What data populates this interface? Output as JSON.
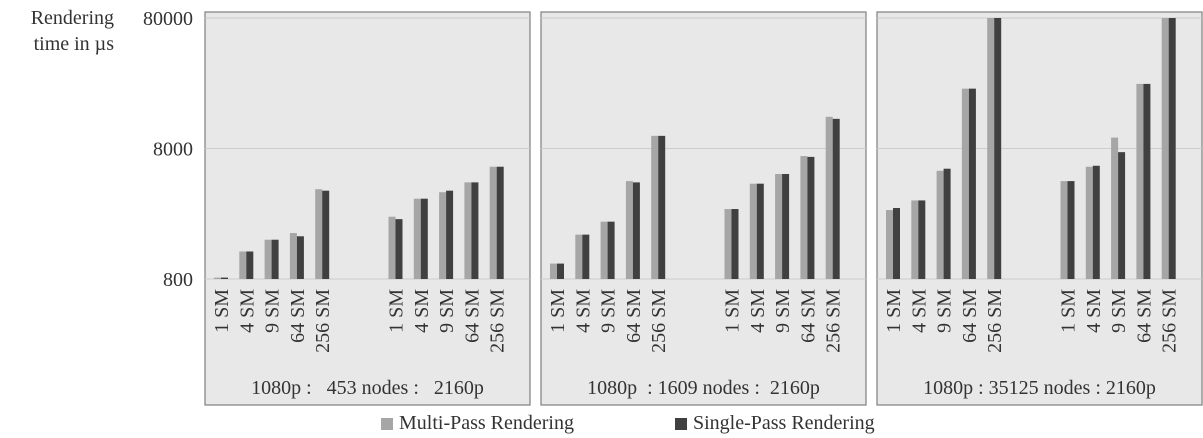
{
  "chart_data": {
    "type": "bar",
    "y_axis": {
      "label_line1": "Rendering",
      "label_line2": "time in µs",
      "scale": "log",
      "ticks": [
        800,
        8000,
        80000
      ],
      "tick_labels": [
        "800",
        "8000",
        "80000"
      ]
    },
    "categories": [
      "1 SM",
      "4 SM",
      "9 SM",
      "64 SM",
      "256 SM",
      "1 SM",
      "4 SM",
      "9 SM",
      "64 SM",
      "256 SM"
    ],
    "panels": [
      {
        "label": "1080p :   453 nodes :   2160p",
        "series": [
          {
            "name": "Multi-Pass Rendering",
            "values": [
              820,
              1300,
              1600,
              1800,
              3900,
              2400,
              3300,
              3700,
              4400,
              5800
            ]
          },
          {
            "name": "Single-Pass Rendering",
            "values": [
              820,
              1300,
              1600,
              1700,
              3800,
              2300,
              3300,
              3800,
              4400,
              5800
            ]
          }
        ]
      },
      {
        "label": "1080p  : 1609 nodes :  2160p",
        "series": [
          {
            "name": "Multi-Pass Rendering",
            "values": [
              1050,
              1750,
              2200,
              4500,
              10000,
              2750,
              4300,
              5100,
              7000,
              14000
            ]
          },
          {
            "name": "Single-Pass Rendering",
            "values": [
              1050,
              1750,
              2200,
              4400,
              10000,
              2750,
              4300,
              5100,
              6900,
              13500
            ]
          }
        ]
      },
      {
        "label": "1080p : 35125 nodes : 2160p",
        "series": [
          {
            "name": "Multi-Pass Rendering",
            "values": [
              2700,
              3200,
              5400,
              23000,
              80000,
              4500,
              5800,
              9700,
              25000,
              80000
            ]
          },
          {
            "name": "Single-Pass Rendering",
            "values": [
              2800,
              3200,
              5600,
              23000,
              80000,
              4500,
              5900,
              7500,
              25000,
              80000
            ]
          }
        ]
      }
    ],
    "legend": {
      "position": "bottom",
      "items": [
        {
          "name": "Multi-Pass Rendering",
          "color": "#a6a6a6"
        },
        {
          "name": "Single-Pass Rendering",
          "color": "#404040"
        }
      ]
    },
    "colors": {
      "multi": "#a6a6a6",
      "single": "#404040",
      "plot_bg": "#e8e8e8",
      "border": "#7f7f7f",
      "grid": "#cccccc"
    },
    "grid": true
  }
}
